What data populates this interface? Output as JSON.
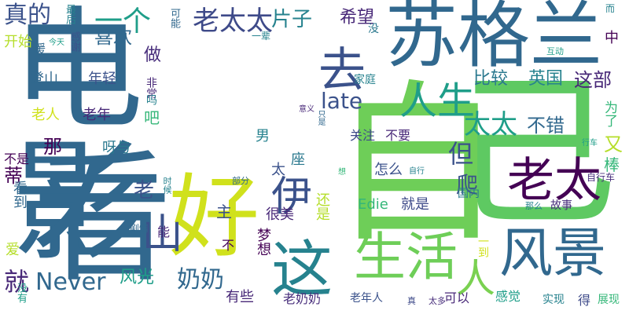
{
  "words": [
    {
      "text": "电影",
      "color": "#31688e",
      "orientation": "vertical"
    },
    {
      "text": "看",
      "color": "#31688e",
      "orientation": "horizontal"
    },
    {
      "text": "好",
      "color": "#d0e11c",
      "orientation": "horizontal"
    },
    {
      "text": "自",
      "color": "#6ece58",
      "orientation": "horizontal"
    },
    {
      "text": "己",
      "color": "#5ec962",
      "orientation": "horizontal"
    },
    {
      "text": "苏格兰",
      "color": "#31688e",
      "orientation": "horizontal"
    },
    {
      "text": "去",
      "color": "#3b528b",
      "orientation": "horizontal"
    },
    {
      "text": "这",
      "color": "#26828e",
      "orientation": "horizontal"
    },
    {
      "text": "生活",
      "color": "#6ece58",
      "orientation": "horizontal"
    },
    {
      "text": "风景",
      "color": "#31688e",
      "orientation": "horizontal"
    },
    {
      "text": "人生",
      "color": "#1f9e89",
      "orientation": "horizontal"
    },
    {
      "text": "老太",
      "color": "#440154",
      "orientation": "horizontal"
    },
    {
      "text": "伊",
      "color": "#3b528b",
      "orientation": "horizontal"
    },
    {
      "text": "山",
      "color": "#3b528b",
      "orientation": "vertical"
    },
    {
      "text": "人",
      "color": "#7ad151",
      "orientation": "horizontal"
    },
    {
      "text": "真的",
      "color": "#3b528b",
      "orientation": "horizontal"
    },
    {
      "text": "一个",
      "color": "#1f9e89",
      "orientation": "horizontal"
    },
    {
      "text": "老太太",
      "color": "#3e4a89",
      "orientation": "horizontal"
    },
    {
      "text": "片子",
      "color": "#26828e",
      "orientation": "horizontal"
    },
    {
      "text": "希望",
      "color": "#482878",
      "orientation": "horizontal"
    },
    {
      "text": "喜欢",
      "color": "#31688e",
      "orientation": "horizontal"
    },
    {
      "text": "做",
      "color": "#472d7b",
      "orientation": "horizontal"
    },
    {
      "text": "没",
      "color": "#2a788e",
      "orientation": "horizontal"
    },
    {
      "text": "开始",
      "color": "#b5de2b",
      "orientation": "horizontal"
    },
    {
      "text": "暖",
      "color": "#31688e",
      "orientation": "horizontal"
    },
    {
      "text": "今天",
      "color": "#1f9e89",
      "orientation": "horizontal"
    },
    {
      "text": "最后",
      "color": "#26828e",
      "orientation": "vertical"
    },
    {
      "text": "感谢",
      "color": "#3b528b",
      "orientation": "vertical"
    },
    {
      "text": "可能",
      "color": "#31688e",
      "orientation": "vertical"
    },
    {
      "text": "一辈",
      "color": "#26828e",
      "orientation": "horizontal"
    },
    {
      "text": "而",
      "color": "#26828e",
      "orientation": "horizontal"
    },
    {
      "text": "中",
      "color": "#440154",
      "orientation": "horizontal"
    },
    {
      "text": "互动",
      "color": "#1f9e89",
      "orientation": "horizontal"
    },
    {
      "text": "登山",
      "color": "#31688e",
      "orientation": "horizontal"
    },
    {
      "text": "年轻",
      "color": "#3b528b",
      "orientation": "horizontal"
    },
    {
      "text": "非常",
      "color": "#482878",
      "orientation": "vertical"
    },
    {
      "text": "吧",
      "color": "#35b779",
      "orientation": "horizontal"
    },
    {
      "text": "比较",
      "color": "#2a788e",
      "orientation": "horizontal"
    },
    {
      "text": "英国",
      "color": "#26828e",
      "orientation": "horizontal"
    },
    {
      "text": "这部",
      "color": "#482878",
      "orientation": "horizontal"
    },
    {
      "text": "家庭",
      "color": "#26828e",
      "orientation": "horizontal"
    },
    {
      "text": "late",
      "color": "#3b528b",
      "orientation": "horizontal"
    },
    {
      "text": "老人",
      "color": "#d0e11c",
      "orientation": "horizontal"
    },
    {
      "text": "老年",
      "color": "#482878",
      "orientation": "horizontal"
    },
    {
      "text": "吗",
      "color": "#26828e",
      "orientation": "vertical"
    },
    {
      "text": "意义",
      "color": "#482878",
      "orientation": "horizontal"
    },
    {
      "text": "为了",
      "color": "#35b779",
      "orientation": "vertical"
    },
    {
      "text": "太太",
      "color": "#1f9e89",
      "orientation": "horizontal"
    },
    {
      "text": "不错",
      "color": "#31688e",
      "orientation": "horizontal"
    },
    {
      "text": "只是",
      "color": "#31688e",
      "orientation": "vertical"
    },
    {
      "text": "关注",
      "color": "#3e4a89",
      "orientation": "horizontal"
    },
    {
      "text": "不要",
      "color": "#482878",
      "orientation": "horizontal"
    },
    {
      "text": "男",
      "color": "#26828e",
      "orientation": "horizontal"
    },
    {
      "text": "那",
      "color": "#440154",
      "orientation": "horizontal"
    },
    {
      "text": "呀与",
      "color": "#2a788e",
      "orientation": "horizontal"
    },
    {
      "text": "行车",
      "color": "#1f9e89",
      "orientation": "horizontal"
    },
    {
      "text": "又",
      "color": "#b5de2b",
      "orientation": "horizontal"
    },
    {
      "text": "棒",
      "color": "#35b779",
      "orientation": "horizontal"
    },
    {
      "text": "不是",
      "color": "#440154",
      "orientation": "horizontal"
    },
    {
      "text": "座",
      "color": "#2a788e",
      "orientation": "horizontal"
    },
    {
      "text": "但",
      "color": "#3b528b",
      "orientation": "horizontal"
    },
    {
      "text": "怎么",
      "color": "#3b528b",
      "orientation": "horizontal"
    },
    {
      "text": "自行车",
      "color": "#472d7b",
      "orientation": "horizontal"
    },
    {
      "text": "想",
      "color": "#35b779",
      "orientation": "horizontal"
    },
    {
      "text": "自行",
      "color": "#26828e",
      "orientation": "horizontal"
    },
    {
      "text": "蒂",
      "color": "#440154",
      "orientation": "horizontal"
    },
    {
      "text": "看到",
      "color": "#31688e",
      "orientation": "vertical"
    },
    {
      "text": "老",
      "color": "#3b528b",
      "orientation": "horizontal"
    },
    {
      "text": "太",
      "color": "#3b528b",
      "orientation": "horizontal"
    },
    {
      "text": "爬",
      "color": "#3b528b",
      "orientation": "horizontal"
    },
    {
      "text": "时候",
      "color": "#26828e",
      "orientation": "vertical"
    },
    {
      "text": "国内",
      "color": "#2a788e",
      "orientation": "horizontal"
    },
    {
      "text": "部分",
      "color": "#31688e",
      "orientation": "horizontal"
    },
    {
      "text": "主",
      "color": "#3b528b",
      "orientation": "horizontal"
    },
    {
      "text": "还是",
      "color": "#b5de2b",
      "orientation": "vertical"
    },
    {
      "text": "Edie",
      "color": "#35b779",
      "orientation": "horizontal"
    },
    {
      "text": "就是",
      "color": "#3e4a89",
      "orientation": "horizontal"
    },
    {
      "text": "很美",
      "color": "#482878",
      "orientation": "horizontal"
    },
    {
      "text": "能",
      "color": "#482878",
      "orientation": "horizontal"
    },
    {
      "text": "那么",
      "color": "#26828e",
      "orientation": "horizontal"
    },
    {
      "text": "故事",
      "color": "#472d7b",
      "orientation": "horizontal"
    },
    {
      "text": "爱",
      "color": "#b5de2b",
      "orientation": "vertical"
    },
    {
      "text": "剧情",
      "color": "#31688e",
      "orientation": "horizontal"
    },
    {
      "text": "不",
      "color": "#440154",
      "orientation": "horizontal"
    },
    {
      "text": "梦想",
      "color": "#440154",
      "orientation": "vertical"
    },
    {
      "text": "一到",
      "color": "#d0e11c",
      "orientation": "vertical"
    },
    {
      "text": "就",
      "color": "#482878",
      "orientation": "horizontal"
    },
    {
      "text": "Never",
      "color": "#31688e",
      "orientation": "horizontal"
    },
    {
      "text": "风光",
      "color": "#1f9e89",
      "orientation": "horizontal"
    },
    {
      "text": "奶奶",
      "color": "#31688e",
      "orientation": "horizontal"
    },
    {
      "text": "有些",
      "color": "#482878",
      "orientation": "horizontal"
    },
    {
      "text": "没有",
      "color": "#1f9e89",
      "orientation": "vertical"
    },
    {
      "text": "老奶奶",
      "color": "#472d7b",
      "orientation": "horizontal"
    },
    {
      "text": "老年人",
      "color": "#3b528b",
      "orientation": "horizontal"
    },
    {
      "text": "真",
      "color": "#3e4a89",
      "orientation": "horizontal"
    },
    {
      "text": "太多",
      "color": "#472d7b",
      "orientation": "horizontal"
    },
    {
      "text": "可以",
      "color": "#482878",
      "orientation": "horizontal"
    },
    {
      "text": "感觉",
      "color": "#1f9e89",
      "orientation": "horizontal"
    },
    {
      "text": "实现",
      "color": "#26828e",
      "orientation": "horizontal"
    },
    {
      "text": "得",
      "color": "#3e4a89",
      "orientation": "horizontal"
    },
    {
      "text": "展现",
      "color": "#35b779",
      "orientation": "horizontal"
    }
  ]
}
